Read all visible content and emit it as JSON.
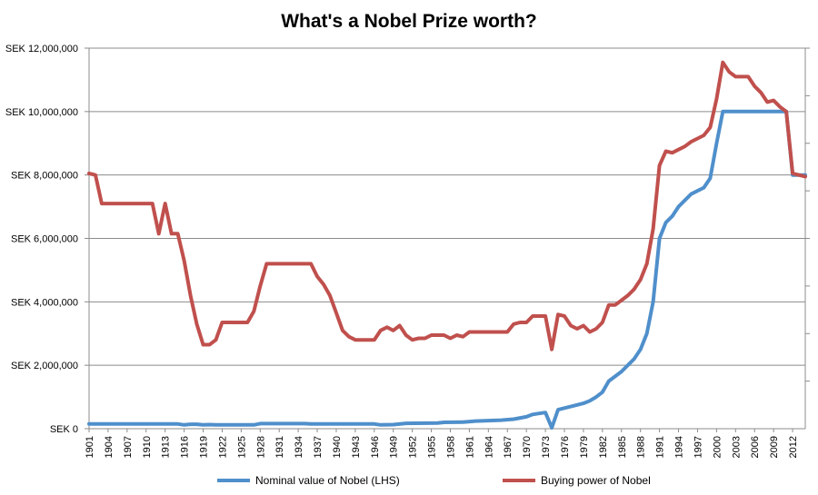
{
  "chart_data": {
    "type": "line",
    "title": "What's a Nobel Prize worth?",
    "xlabel": "",
    "ylabel": "",
    "xlim": [
      1901,
      2014
    ],
    "ylim": [
      0,
      12000000
    ],
    "grid": true,
    "legend_position": "bottom",
    "y_ticks": [
      {
        "value": 0,
        "label": "SEK 0"
      },
      {
        "value": 2000000,
        "label": "SEK 2,000,000"
      },
      {
        "value": 4000000,
        "label": "SEK 4,000,000"
      },
      {
        "value": 6000000,
        "label": "SEK 6,000,000"
      },
      {
        "value": 8000000,
        "label": "SEK 8,000,000"
      },
      {
        "value": 10000000,
        "label": "SEK 10,000,000"
      },
      {
        "value": 12000000,
        "label": "SEK 12,000,000"
      }
    ],
    "x_ticks": [
      "1901",
      "1904",
      "1907",
      "1910",
      "1913",
      "1916",
      "1919",
      "1922",
      "1925",
      "1928",
      "1931",
      "1934",
      "1937",
      "1940",
      "1943",
      "1946",
      "1949",
      "1952",
      "1955",
      "1958",
      "1961",
      "1964",
      "1967",
      "1970",
      "1973",
      "1976",
      "1979",
      "1982",
      "1985",
      "1988",
      "1991",
      "1994",
      "1997",
      "2000",
      "2003",
      "2006",
      "2009",
      "2012"
    ],
    "series": [
      {
        "name": "Nominal value of Nobel (LHS)",
        "color": "#4f8fcb",
        "points": [
          [
            1901,
            150000
          ],
          [
            1915,
            150000
          ],
          [
            1916,
            120000
          ],
          [
            1917,
            140000
          ],
          [
            1918,
            140000
          ],
          [
            1919,
            120000
          ],
          [
            1920,
            130000
          ],
          [
            1921,
            120000
          ],
          [
            1927,
            120000
          ],
          [
            1928,
            160000
          ],
          [
            1935,
            160000
          ],
          [
            1936,
            150000
          ],
          [
            1946,
            150000
          ],
          [
            1947,
            120000
          ],
          [
            1949,
            130000
          ],
          [
            1951,
            170000
          ],
          [
            1956,
            180000
          ],
          [
            1957,
            200000
          ],
          [
            1960,
            210000
          ],
          [
            1962,
            240000
          ],
          [
            1966,
            270000
          ],
          [
            1968,
            300000
          ],
          [
            1970,
            375000
          ],
          [
            1971,
            450000
          ],
          [
            1972,
            480000
          ],
          [
            1973,
            510000
          ],
          [
            1974,
            30000
          ],
          [
            1975,
            600000
          ],
          [
            1976,
            650000
          ],
          [
            1977,
            700000
          ],
          [
            1978,
            750000
          ],
          [
            1979,
            800000
          ],
          [
            1980,
            880000
          ],
          [
            1981,
            1000000
          ],
          [
            1982,
            1150000
          ],
          [
            1983,
            1500000
          ],
          [
            1984,
            1650000
          ],
          [
            1985,
            1800000
          ],
          [
            1986,
            2000000
          ],
          [
            1987,
            2200000
          ],
          [
            1988,
            2500000
          ],
          [
            1989,
            3000000
          ],
          [
            1990,
            4000000
          ],
          [
            1991,
            6000000
          ],
          [
            1992,
            6500000
          ],
          [
            1993,
            6700000
          ],
          [
            1994,
            7000000
          ],
          [
            1995,
            7200000
          ],
          [
            1996,
            7400000
          ],
          [
            1997,
            7500000
          ],
          [
            1998,
            7600000
          ],
          [
            1999,
            7900000
          ],
          [
            2000,
            9000000
          ],
          [
            2001,
            10000000
          ],
          [
            2011,
            10000000
          ],
          [
            2012,
            8000000
          ],
          [
            2014,
            8000000
          ]
        ]
      },
      {
        "name": "Buying power of Nobel",
        "color": "#c0504d",
        "points": [
          [
            1901,
            8050000
          ],
          [
            1902,
            8000000
          ],
          [
            1903,
            7100000
          ],
          [
            1911,
            7100000
          ],
          [
            1912,
            6150000
          ],
          [
            1913,
            7100000
          ],
          [
            1914,
            6150000
          ],
          [
            1915,
            6150000
          ],
          [
            1916,
            5300000
          ],
          [
            1917,
            4200000
          ],
          [
            1918,
            3300000
          ],
          [
            1919,
            2650000
          ],
          [
            1920,
            2650000
          ],
          [
            1921,
            2800000
          ],
          [
            1922,
            3350000
          ],
          [
            1926,
            3350000
          ],
          [
            1927,
            3700000
          ],
          [
            1928,
            4500000
          ],
          [
            1929,
            5200000
          ],
          [
            1936,
            5200000
          ],
          [
            1937,
            4800000
          ],
          [
            1938,
            4550000
          ],
          [
            1939,
            4200000
          ],
          [
            1940,
            3650000
          ],
          [
            1941,
            3100000
          ],
          [
            1942,
            2900000
          ],
          [
            1943,
            2800000
          ],
          [
            1946,
            2800000
          ],
          [
            1947,
            3100000
          ],
          [
            1948,
            3200000
          ],
          [
            1949,
            3100000
          ],
          [
            1950,
            3250000
          ],
          [
            1951,
            2950000
          ],
          [
            1952,
            2800000
          ],
          [
            1953,
            2850000
          ],
          [
            1954,
            2850000
          ],
          [
            1955,
            2950000
          ],
          [
            1956,
            2950000
          ],
          [
            1957,
            2950000
          ],
          [
            1958,
            2850000
          ],
          [
            1959,
            2950000
          ],
          [
            1960,
            2900000
          ],
          [
            1961,
            3050000
          ],
          [
            1967,
            3050000
          ],
          [
            1968,
            3300000
          ],
          [
            1969,
            3350000
          ],
          [
            1970,
            3350000
          ],
          [
            1971,
            3550000
          ],
          [
            1973,
            3550000
          ],
          [
            1974,
            2500000
          ],
          [
            1975,
            3600000
          ],
          [
            1976,
            3550000
          ],
          [
            1977,
            3250000
          ],
          [
            1978,
            3150000
          ],
          [
            1979,
            3250000
          ],
          [
            1980,
            3050000
          ],
          [
            1981,
            3150000
          ],
          [
            1982,
            3350000
          ],
          [
            1983,
            3900000
          ],
          [
            1984,
            3900000
          ],
          [
            1985,
            4050000
          ],
          [
            1986,
            4200000
          ],
          [
            1987,
            4400000
          ],
          [
            1988,
            4700000
          ],
          [
            1989,
            5200000
          ],
          [
            1990,
            6300000
          ],
          [
            1991,
            8300000
          ],
          [
            1992,
            8750000
          ],
          [
            1993,
            8700000
          ],
          [
            1994,
            8800000
          ],
          [
            1995,
            8900000
          ],
          [
            1996,
            9050000
          ],
          [
            1997,
            9150000
          ],
          [
            1998,
            9250000
          ],
          [
            1999,
            9500000
          ],
          [
            2000,
            10400000
          ],
          [
            2001,
            11550000
          ],
          [
            2002,
            11250000
          ],
          [
            2003,
            11100000
          ],
          [
            2004,
            11100000
          ],
          [
            2005,
            11100000
          ],
          [
            2006,
            10800000
          ],
          [
            2007,
            10600000
          ],
          [
            2008,
            10300000
          ],
          [
            2009,
            10350000
          ],
          [
            2010,
            10150000
          ],
          [
            2011,
            10000000
          ],
          [
            2012,
            8050000
          ],
          [
            2013,
            8000000
          ],
          [
            2014,
            7950000
          ]
        ]
      }
    ]
  }
}
